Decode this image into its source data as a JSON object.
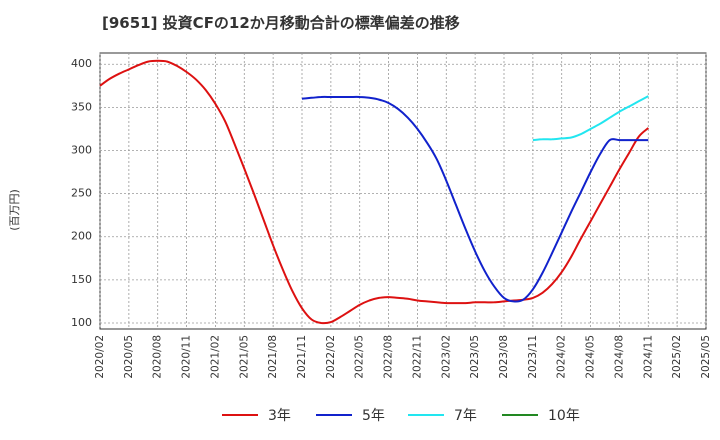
{
  "title": "[9651]  投資CFの12か月移動合計の標準偏差の推移",
  "chart_data": {
    "type": "line",
    "title": "[9651]  投資CFの12か月移動合計の標準偏差の推移",
    "xlabel": "",
    "ylabel": "(百万円)",
    "ylim": [
      93,
      413
    ],
    "yticks": [
      100,
      150,
      200,
      250,
      300,
      350,
      400
    ],
    "xlim": [
      "2020-02",
      "2025-05"
    ],
    "xticks": [
      "2020/02",
      "2020/05",
      "2020/08",
      "2020/11",
      "2021/02",
      "2021/05",
      "2021/08",
      "2021/11",
      "2022/02",
      "2022/05",
      "2022/08",
      "2022/11",
      "2023/02",
      "2023/05",
      "2023/08",
      "2023/11",
      "2024/02",
      "2024/05",
      "2024/08",
      "2024/11",
      "2025/02",
      "2025/05"
    ],
    "grid": true,
    "legend_position": "bottom",
    "series": [
      {
        "name": "3年",
        "color": "#dd1111",
        "x": [
          "2020-02",
          "2020-03",
          "2020-04",
          "2020-05",
          "2020-06",
          "2020-07",
          "2020-08",
          "2020-09",
          "2020-10",
          "2020-11",
          "2020-12",
          "2021-01",
          "2021-02",
          "2021-03",
          "2021-04",
          "2021-05",
          "2021-06",
          "2021-07",
          "2021-08",
          "2021-09",
          "2021-10",
          "2021-11",
          "2021-12",
          "2022-01",
          "2022-02",
          "2022-03",
          "2022-04",
          "2022-05",
          "2022-06",
          "2022-07",
          "2022-08",
          "2022-09",
          "2022-10",
          "2022-11",
          "2022-12",
          "2023-01",
          "2023-02",
          "2023-03",
          "2023-04",
          "2023-05",
          "2023-06",
          "2023-07",
          "2023-08",
          "2023-09",
          "2023-10",
          "2023-11",
          "2023-12",
          "2024-01",
          "2024-02",
          "2024-03",
          "2024-04",
          "2024-05",
          "2024-06",
          "2024-07",
          "2024-08",
          "2024-09",
          "2024-10",
          "2024-11"
        ],
        "values": [
          375,
          383,
          389,
          394,
          399,
          403,
          404,
          403,
          398,
          391,
          382,
          370,
          354,
          334,
          307,
          279,
          250,
          220,
          190,
          162,
          137,
          117,
          104,
          100,
          101,
          107,
          114,
          121,
          126,
          129,
          130,
          129,
          128,
          126,
          125,
          124,
          123,
          123,
          123,
          124,
          124,
          124,
          125,
          126,
          127,
          129,
          135,
          145,
          159,
          177,
          198,
          218,
          238,
          258,
          278,
          297,
          316,
          326
        ]
      },
      {
        "name": "5年",
        "color": "#1122cc",
        "x": [
          "2021-11",
          "2021-12",
          "2022-01",
          "2022-02",
          "2022-03",
          "2022-04",
          "2022-05",
          "2022-06",
          "2022-07",
          "2022-08",
          "2022-09",
          "2022-10",
          "2022-11",
          "2022-12",
          "2023-01",
          "2023-02",
          "2023-03",
          "2023-04",
          "2023-05",
          "2023-06",
          "2023-07",
          "2023-08",
          "2023-09",
          "2023-10",
          "2023-11",
          "2023-12",
          "2024-01",
          "2024-02",
          "2024-03",
          "2024-04",
          "2024-05",
          "2024-06",
          "2024-07",
          "2024-08",
          "2024-09",
          "2024-10",
          "2024-11"
        ],
        "values": [
          360,
          361,
          362,
          362,
          362,
          362,
          362,
          361,
          359,
          355,
          348,
          338,
          325,
          309,
          290,
          265,
          237,
          209,
          183,
          160,
          142,
          129,
          125,
          127,
          139,
          158,
          181,
          205,
          229,
          252,
          275,
          296,
          312,
          312,
          312,
          312,
          312
        ]
      },
      {
        "name": "7年",
        "color": "#22e6f0",
        "x": [
          "2023-11",
          "2023-12",
          "2024-01",
          "2024-02",
          "2024-03",
          "2024-04",
          "2024-05",
          "2024-06",
          "2024-07",
          "2024-08",
          "2024-09",
          "2024-10",
          "2024-11"
        ],
        "values": [
          312,
          313,
          313,
          314,
          315,
          319,
          325,
          331,
          338,
          345,
          351,
          357,
          363
        ]
      },
      {
        "name": "10年",
        "color": "#228822",
        "x": [],
        "values": []
      }
    ]
  }
}
